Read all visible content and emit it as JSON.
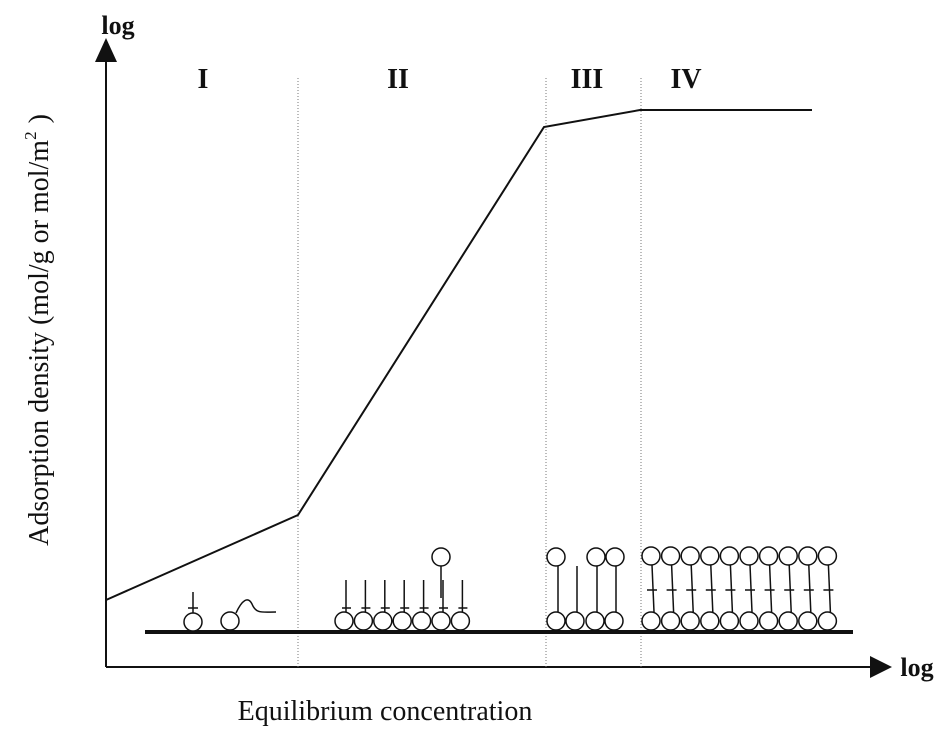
{
  "diagram": {
    "y_axis": {
      "scale_label": "log",
      "title": "Adsorption density (mol/g or mol/m",
      "title_superscript": "2",
      "title_end": ")"
    },
    "x_axis": {
      "scale_label": "log",
      "title": "Equilibrium concentration"
    },
    "regions": [
      {
        "label": "I"
      },
      {
        "label": "II"
      },
      {
        "label": "III"
      },
      {
        "label": "IV"
      }
    ]
  }
}
